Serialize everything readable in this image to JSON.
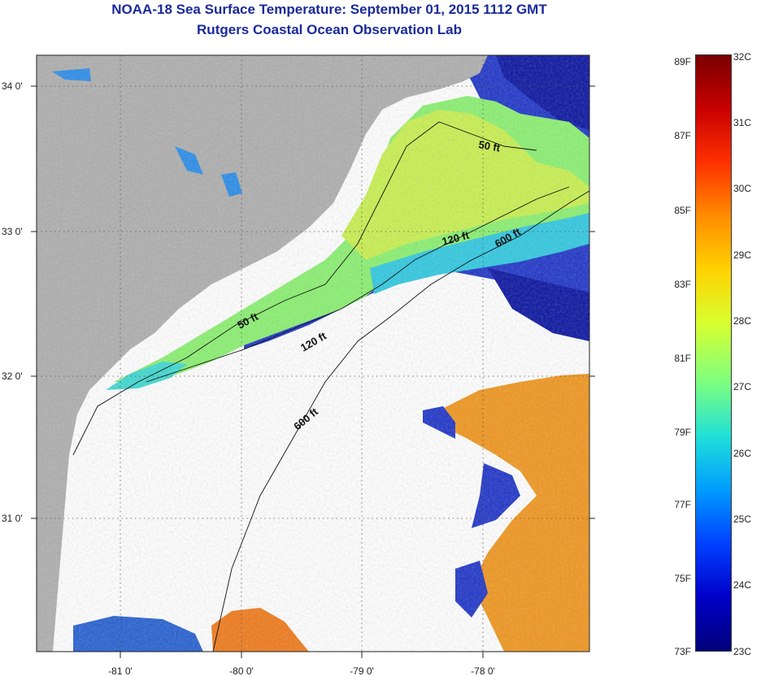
{
  "title": "NOAA-18 Sea Surface Temperature:  September 01, 2015 1112 GMT",
  "subtitle": "Rutgers Coastal Ocean Observation Lab",
  "axes": {
    "lat_ticks": [
      "34 0'",
      "33 0'",
      "32 0'",
      "31 0'"
    ],
    "lon_ticks": [
      "-81 0'",
      "-80 0'",
      "-79 0'",
      "-78 0'"
    ]
  },
  "contour_labels": [
    "50 ft",
    "120 ft",
    "600 ft",
    "50 ft",
    "120 ft",
    "600 ft"
  ],
  "colorbar": {
    "fahrenheit": [
      "89F",
      "87F",
      "85F",
      "83F",
      "81F",
      "79F",
      "77F",
      "75F",
      "73F"
    ],
    "celsius": [
      "32C",
      "31C",
      "30C",
      "29C",
      "28C",
      "27C",
      "26C",
      "25C",
      "24C",
      "23C"
    ],
    "colors": [
      "#7a0000",
      "#c80000",
      "#ff3000",
      "#ff8c00",
      "#ffd200",
      "#d8ff30",
      "#7cff80",
      "#20e0d8",
      "#009cff",
      "#0040ff",
      "#0000c8",
      "#00007a"
    ]
  },
  "colors": {
    "land": "#aeaeae",
    "cloud": "#ffffff",
    "title": "#1a2a9a"
  }
}
